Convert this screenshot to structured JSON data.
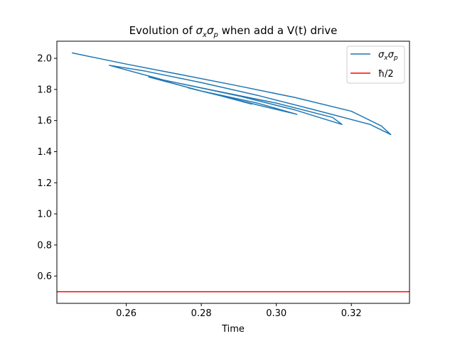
{
  "chart_data": {
    "type": "line",
    "title": "Evolution of σxσp when add a V(t) drive",
    "title_parts": {
      "prefix": "Evolution of ",
      "sym1": "σ",
      "sub1": "x",
      "sym2": "σ",
      "sub2": "p",
      "suffix": " when add a V(t) drive"
    },
    "xlabel": "Time",
    "ylabel": "",
    "xlim": [
      0.2415,
      0.3355
    ],
    "ylim": [
      0.425,
      2.11
    ],
    "xticks": [
      0.26,
      0.28,
      0.3,
      0.32
    ],
    "xtick_labels": [
      "0.26",
      "0.28",
      "0.30",
      "0.32"
    ],
    "yticks": [
      0.6,
      0.8,
      1.0,
      1.2,
      1.4,
      1.6,
      1.8,
      2.0
    ],
    "ytick_labels": [
      "0.6",
      "0.8",
      "1.0",
      "1.2",
      "1.4",
      "1.6",
      "1.8",
      "2.0"
    ],
    "grid": false,
    "legend_position": "top-right",
    "series": [
      {
        "name": "σxσp",
        "name_parts": {
          "sym1": "σ",
          "sub1": "x",
          "sym2": "σ",
          "sub2": "p"
        },
        "color": "#1f77b4",
        "x": [
          0.2455,
          0.26,
          0.275,
          0.29,
          0.305,
          0.32,
          0.328,
          0.3305,
          0.325,
          0.31,
          0.295,
          0.28,
          0.265,
          0.2555,
          0.27,
          0.285,
          0.3,
          0.315,
          0.3175,
          0.305,
          0.29,
          0.275,
          0.266,
          0.28,
          0.295,
          0.3055,
          0.295,
          0.285,
          0.2765,
          0.285,
          0.2935
        ],
        "y": [
          2.035,
          1.963,
          1.893,
          1.822,
          1.748,
          1.66,
          1.565,
          1.51,
          1.575,
          1.67,
          1.762,
          1.844,
          1.918,
          1.955,
          1.86,
          1.785,
          1.712,
          1.62,
          1.575,
          1.668,
          1.758,
          1.835,
          1.88,
          1.79,
          1.712,
          1.64,
          1.7,
          1.76,
          1.81,
          1.76,
          1.705
        ]
      },
      {
        "name": "ħ/2",
        "color": "#ff0000",
        "hline": 0.5
      }
    ]
  }
}
